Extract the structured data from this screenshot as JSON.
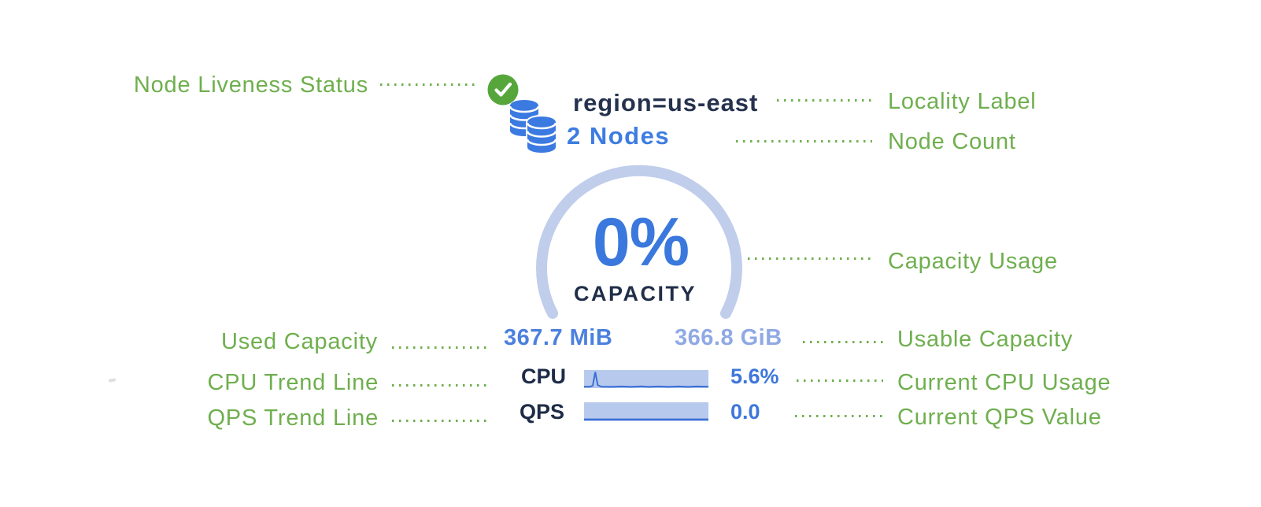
{
  "annotations": {
    "node_liveness": "Node Liveness Status",
    "locality": "Locality Label",
    "node_count": "Node Count",
    "capacity_usage": "Capacity Usage",
    "used_capacity": "Used Capacity",
    "usable_capacity": "Usable Capacity",
    "cpu_trend": "CPU Trend Line",
    "current_cpu": "Current CPU Usage",
    "qps_trend": "QPS Trend Line",
    "current_qps": "Current QPS Value"
  },
  "node_card": {
    "liveness_status": "live",
    "locality": "region=us-east",
    "node_count": "2 Nodes",
    "capacity_percent": "0%",
    "capacity_caption": "CAPACITY",
    "used_capacity": "367.7 MiB",
    "usable_capacity": "366.8 GiB",
    "cpu": {
      "label": "CPU",
      "value": "5.6%",
      "trend": [
        [
          0,
          4
        ],
        [
          5,
          4
        ],
        [
          7,
          10
        ],
        [
          9,
          85
        ],
        [
          11,
          12
        ],
        [
          14,
          4
        ],
        [
          22,
          3
        ],
        [
          30,
          5
        ],
        [
          38,
          3
        ],
        [
          46,
          6
        ],
        [
          52,
          3
        ],
        [
          60,
          5
        ],
        [
          68,
          3
        ],
        [
          76,
          5
        ],
        [
          84,
          3
        ],
        [
          90,
          5
        ],
        [
          100,
          4
        ]
      ]
    },
    "qps": {
      "label": "QPS",
      "value": "0.0",
      "trend": [
        [
          0,
          5
        ],
        [
          100,
          5
        ]
      ]
    }
  },
  "icons": {
    "liveness": "check-circle-icon",
    "nodes": "database-stack-icon"
  },
  "colors": {
    "annotation_green": "#6faf4e",
    "status_green": "#56a63c",
    "db_blue": "#3b7ae0",
    "navy": "#25324e",
    "node_count_blue": "#3d7de2",
    "gauge_track": "#c0cdeb",
    "percent_blue": "#3a78dd",
    "used_blue": "#4b80de",
    "usable_blue": "#8fa9e4",
    "spark_fill": "#b7c9ed",
    "spark_line": "#3a6fd6",
    "white": "#ffffff"
  }
}
